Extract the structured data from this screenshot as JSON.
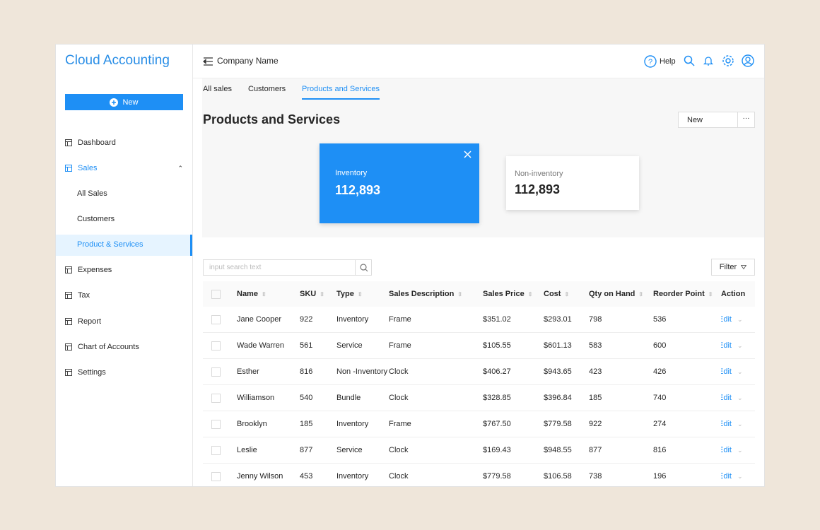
{
  "sidebar": {
    "brand": "Cloud Accounting",
    "new_button": "New",
    "menu": [
      "Dashboard",
      "Sales",
      "Expenses",
      "Tax",
      "Report",
      "Chart of Accounts",
      "Settings"
    ],
    "sales_submenu": [
      "All Sales",
      "Customers",
      "Product & Services"
    ]
  },
  "header": {
    "company": "Company Name",
    "help": "Help"
  },
  "tabs": [
    "All sales",
    "Customers",
    "Products and Services"
  ],
  "page": {
    "title": "Products and Services",
    "new_button": "New"
  },
  "cards": [
    {
      "label": "Inventory",
      "value": "112,893"
    },
    {
      "label": "Non-inventory",
      "value": "112,893"
    }
  ],
  "search_placeholder": "input search text",
  "filter_button": "Filter",
  "table": {
    "columns": [
      "Name",
      "SKU",
      "Type",
      "Sales Description",
      "Sales Price",
      "Cost",
      "Qty on Hand",
      "Reorder Point",
      "Action"
    ],
    "rows": [
      [
        "Jane Cooper",
        "922",
        "Inventory",
        "Frame",
        "$351.02",
        "$293.01",
        "798",
        "536",
        "Edit"
      ],
      [
        "Wade Warren",
        "561",
        "Service",
        "Frame",
        "$105.55",
        "$601.13",
        "583",
        "600",
        "Edit"
      ],
      [
        "Esther",
        "816",
        "Non -Inventory",
        "Clock",
        "$406.27",
        "$943.65",
        "423",
        "426",
        "Edit"
      ],
      [
        "Williamson",
        "540",
        "Bundle",
        "Clock",
        "$328.85",
        "$396.84",
        "185",
        "740",
        "Edit"
      ],
      [
        "Brooklyn",
        "185",
        "Inventory",
        "Frame",
        "$767.50",
        "$779.58",
        "922",
        "274",
        "Edit"
      ],
      [
        "Leslie",
        "877",
        "Service",
        "Clock",
        "$169.43",
        "$948.55",
        "877",
        "816",
        "Edit"
      ],
      [
        "Jenny Wilson",
        "453",
        "Inventory",
        "Clock",
        "$779.58",
        "$106.58",
        "738",
        "196",
        "Edit"
      ]
    ]
  }
}
